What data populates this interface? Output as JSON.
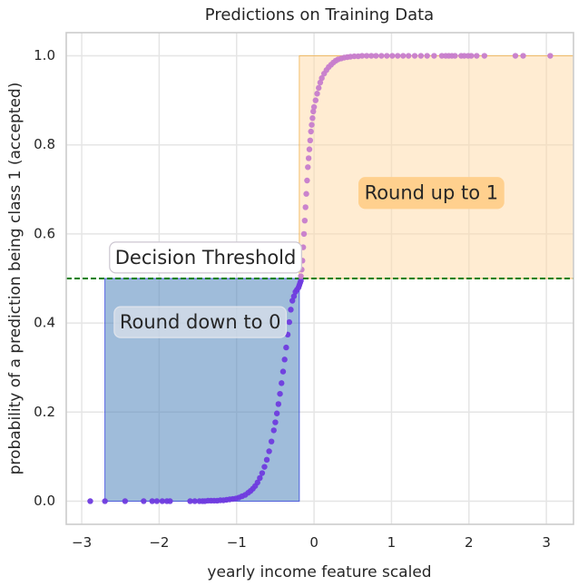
{
  "chart_data": {
    "type": "scatter",
    "title": "Predictions on Training Data",
    "xlabel": "yearly income feature scaled",
    "ylabel": "probability of a prediction being class 1 (accepted)",
    "xlim": [
      -3.2,
      3.35
    ],
    "ylim": [
      -0.052,
      1.052
    ],
    "xticks": [
      -3,
      -2,
      -1,
      0,
      1,
      2,
      3
    ],
    "xtick_labels": [
      "−3",
      "−2",
      "−1",
      "0",
      "1",
      "2",
      "3"
    ],
    "yticks": [
      0.0,
      0.2,
      0.4,
      0.6,
      0.8,
      1.0
    ],
    "ytick_labels": [
      "0.0",
      "0.2",
      "0.4",
      "0.6",
      "0.8",
      "1.0"
    ],
    "grid": true,
    "threshold": {
      "y": 0.5,
      "color": "#008000",
      "style": "dashed"
    },
    "regions": [
      {
        "x": [
          -2.7,
          -0.19
        ],
        "y": [
          0.0,
          0.5
        ],
        "fill": "#5a8cc0",
        "stroke": "#3344dd",
        "opacity": 0.58
      },
      {
        "x": [
          -0.19,
          3.35
        ],
        "y": [
          0.5,
          1.0
        ],
        "fill": "#ffd9a6",
        "stroke": "#f2b24e",
        "opacity": 0.5
      }
    ],
    "annotations": [
      {
        "text": "Decision Threshold",
        "x": -2.57,
        "y": 0.545,
        "box_fill": "#ffffff",
        "box_stroke": "#ccc6d1"
      },
      {
        "text": "Round down to 0",
        "x": -2.51,
        "y": 0.4,
        "box_fill": "#e0e4ec",
        "box_stroke": "#e0e4ec",
        "box_opacity": 0.68
      },
      {
        "text": "Round up to 1",
        "x": 0.65,
        "y": 0.69,
        "box_fill": "#ffd08e",
        "box_stroke": "#ffd08e"
      }
    ],
    "series": [
      {
        "class": 0,
        "color": "#6f3bdf",
        "x": [
          -2.89,
          -2.7,
          -2.44,
          -2.2,
          -2.09,
          -2.03,
          -1.96,
          -1.9,
          -1.86,
          -1.6,
          -1.54,
          -1.48,
          -1.44,
          -1.41,
          -1.37,
          -1.33,
          -1.29,
          -1.25,
          -1.21,
          -1.17,
          -1.13,
          -1.09,
          -1.05,
          -1.01,
          -0.97,
          -0.93,
          -0.89,
          -0.85,
          -0.82,
          -0.79,
          -0.76,
          -0.73,
          -0.7,
          -0.67,
          -0.64,
          -0.61,
          -0.58,
          -0.55,
          -0.52,
          -0.5,
          -0.48,
          -0.46,
          -0.44,
          -0.42,
          -0.4,
          -0.38,
          -0.36,
          -0.34,
          -0.32,
          -0.3,
          -0.28,
          -0.26,
          -0.24,
          -0.22,
          -0.2,
          -0.19,
          -0.18,
          -0.17
        ],
        "y": [
          0.0,
          0.0,
          0.0,
          0.0,
          0.0,
          0.0,
          0.0,
          0.0,
          0.0,
          0.0,
          0.0,
          0.0,
          0.0,
          0.0,
          0.001,
          0.001,
          0.001,
          0.001,
          0.002,
          0.002,
          0.003,
          0.004,
          0.005,
          0.006,
          0.008,
          0.011,
          0.014,
          0.019,
          0.023,
          0.028,
          0.034,
          0.042,
          0.052,
          0.063,
          0.077,
          0.093,
          0.112,
          0.134,
          0.159,
          0.177,
          0.197,
          0.218,
          0.241,
          0.265,
          0.291,
          0.318,
          0.345,
          0.374,
          0.402,
          0.43,
          0.45,
          0.46,
          0.47,
          0.475,
          0.48,
          0.485,
          0.49,
          0.495
        ]
      },
      {
        "class": 1,
        "color": "#c77dcc",
        "x": [
          -0.17,
          -0.16,
          -0.15,
          -0.14,
          -0.13,
          -0.12,
          -0.11,
          -0.1,
          -0.09,
          -0.08,
          -0.07,
          -0.06,
          -0.05,
          -0.04,
          -0.03,
          -0.02,
          -0.01,
          0.0,
          0.02,
          0.04,
          0.06,
          0.08,
          0.1,
          0.13,
          0.16,
          0.19,
          0.22,
          0.25,
          0.28,
          0.31,
          0.35,
          0.39,
          0.43,
          0.47,
          0.52,
          0.57,
          0.62,
          0.68,
          0.74,
          0.8,
          0.87,
          0.94,
          1.01,
          1.08,
          1.15,
          1.22,
          1.3,
          1.38,
          1.46,
          1.55,
          1.65,
          1.7,
          1.74,
          1.78,
          1.82,
          1.9,
          1.94,
          1.99,
          2.03,
          2.1,
          2.2,
          2.6,
          2.7,
          3.05
        ],
        "y": [
          0.505,
          0.52,
          0.54,
          0.57,
          0.6,
          0.63,
          0.66,
          0.69,
          0.72,
          0.75,
          0.77,
          0.79,
          0.81,
          0.83,
          0.845,
          0.86,
          0.875,
          0.885,
          0.9,
          0.915,
          0.928,
          0.94,
          0.95,
          0.96,
          0.968,
          0.975,
          0.98,
          0.985,
          0.989,
          0.992,
          0.994,
          0.996,
          0.997,
          0.998,
          0.999,
          0.999,
          1.0,
          1.0,
          1.0,
          1.0,
          1.0,
          1.0,
          1.0,
          1.0,
          1.0,
          1.0,
          1.0,
          1.0,
          1.0,
          1.0,
          1.0,
          1.0,
          1.0,
          1.0,
          1.0,
          1.0,
          1.0,
          1.0,
          1.0,
          1.0,
          1.0,
          1.0,
          1.0,
          1.0
        ]
      }
    ]
  }
}
